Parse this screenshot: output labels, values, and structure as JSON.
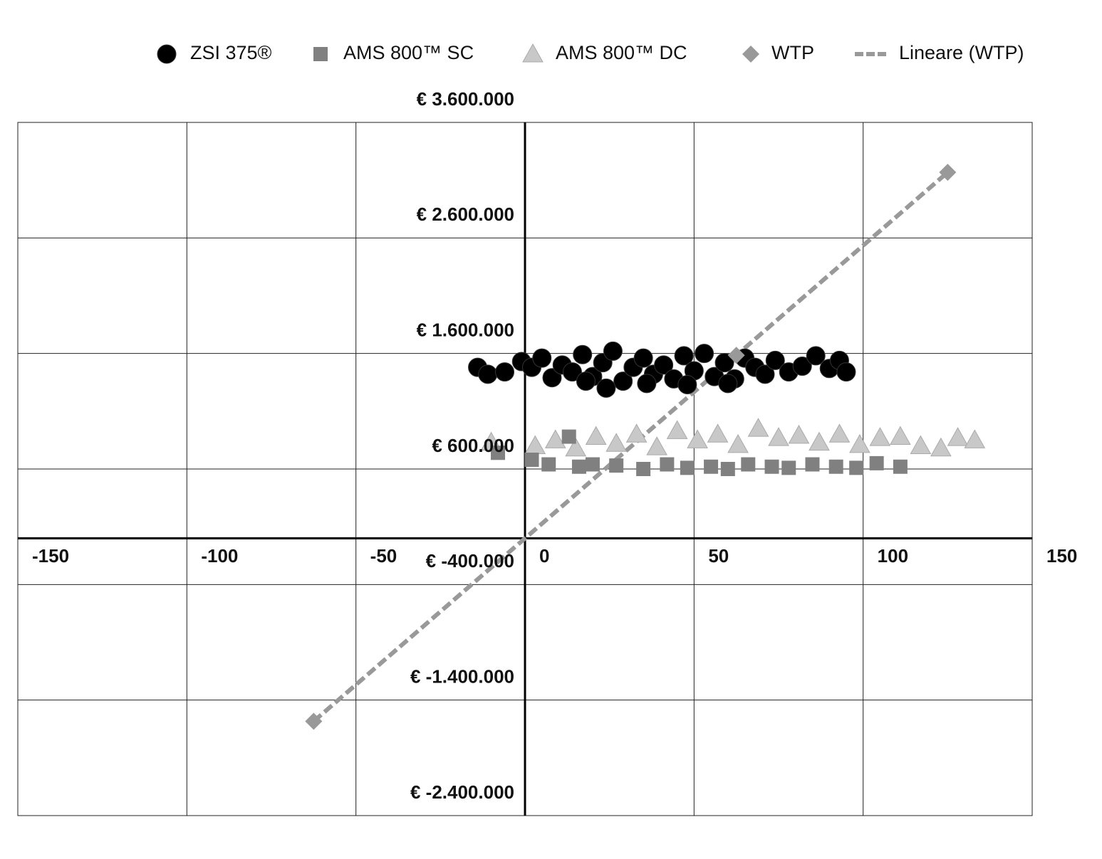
{
  "chart_data": {
    "type": "scatter",
    "xlim": [
      -150,
      150
    ],
    "xticks": [
      -150,
      -100,
      -50,
      0,
      50,
      100,
      150
    ],
    "ylim": [
      -2400000,
      3600000
    ],
    "yticks": [
      {
        "value": -2400000,
        "label": "€ -2.400.000"
      },
      {
        "value": -1400000,
        "label": "€ -1.400.000"
      },
      {
        "value": -400000,
        "label": "€ -400.000"
      },
      {
        "value": 600000,
        "label": "€ 600.000"
      },
      {
        "value": 1600000,
        "label": "€ 1.600.000"
      },
      {
        "value": 2600000,
        "label": "€ 2.600.000"
      },
      {
        "value": 3600000,
        "label": "€ 3.600.000"
      }
    ],
    "grid": true,
    "legend": "top",
    "series": [
      {
        "name": "ZSI 375®",
        "color": "#000000",
        "marker": "circle",
        "x": [
          -14,
          -11,
          -6,
          -1,
          2,
          5,
          8,
          11,
          14,
          17,
          20,
          23,
          26,
          29,
          32,
          35,
          38,
          41,
          44,
          47,
          50,
          53,
          56,
          59,
          62,
          65,
          68,
          71,
          74,
          78,
          82,
          86,
          90,
          93,
          95,
          24,
          36,
          48,
          18,
          60
        ],
        "values": [
          1480000,
          1420000,
          1440000,
          1530000,
          1480000,
          1560000,
          1390000,
          1500000,
          1440000,
          1590000,
          1400000,
          1520000,
          1620000,
          1360000,
          1480000,
          1560000,
          1420000,
          1500000,
          1380000,
          1580000,
          1450000,
          1600000,
          1400000,
          1520000,
          1380000,
          1560000,
          1480000,
          1420000,
          1540000,
          1440000,
          1490000,
          1580000,
          1470000,
          1540000,
          1440000,
          1300000,
          1340000,
          1330000,
          1360000,
          1340000
        ]
      },
      {
        "name": "AMS 800™ SC",
        "color": "#808080",
        "marker": "square",
        "x": [
          -8,
          2,
          7,
          13,
          16,
          20,
          27,
          35,
          42,
          48,
          55,
          60,
          66,
          73,
          78,
          85,
          92,
          98,
          104,
          111
        ],
        "values": [
          740000,
          680000,
          640000,
          880000,
          620000,
          640000,
          630000,
          600000,
          640000,
          610000,
          620000,
          600000,
          640000,
          620000,
          610000,
          640000,
          620000,
          610000,
          650000,
          620000
        ]
      },
      {
        "name": "AMS 800™ DC",
        "color": "#c8c8c8",
        "marker": "triangle",
        "x": [
          -10,
          3,
          9,
          15,
          21,
          27,
          33,
          39,
          45,
          51,
          57,
          63,
          69,
          75,
          81,
          87,
          93,
          99,
          105,
          111,
          117,
          123,
          128,
          133
        ],
        "values": [
          830000,
          800000,
          850000,
          780000,
          880000,
          820000,
          900000,
          790000,
          930000,
          850000,
          900000,
          810000,
          950000,
          870000,
          890000,
          830000,
          900000,
          810000,
          870000,
          880000,
          800000,
          780000,
          870000,
          850000
        ]
      },
      {
        "name": "WTP",
        "color": "#999999",
        "marker": "diamond",
        "x": [
          -62.5,
          62.5,
          125
        ],
        "values": [
          -1584000,
          1584000,
          3168000
        ]
      },
      {
        "name": "Lineare (WTP)",
        "color": "#999999",
        "marker": "dashed-line",
        "x": [
          -62.5,
          125
        ],
        "values": [
          -1584000,
          3168000
        ]
      }
    ]
  }
}
